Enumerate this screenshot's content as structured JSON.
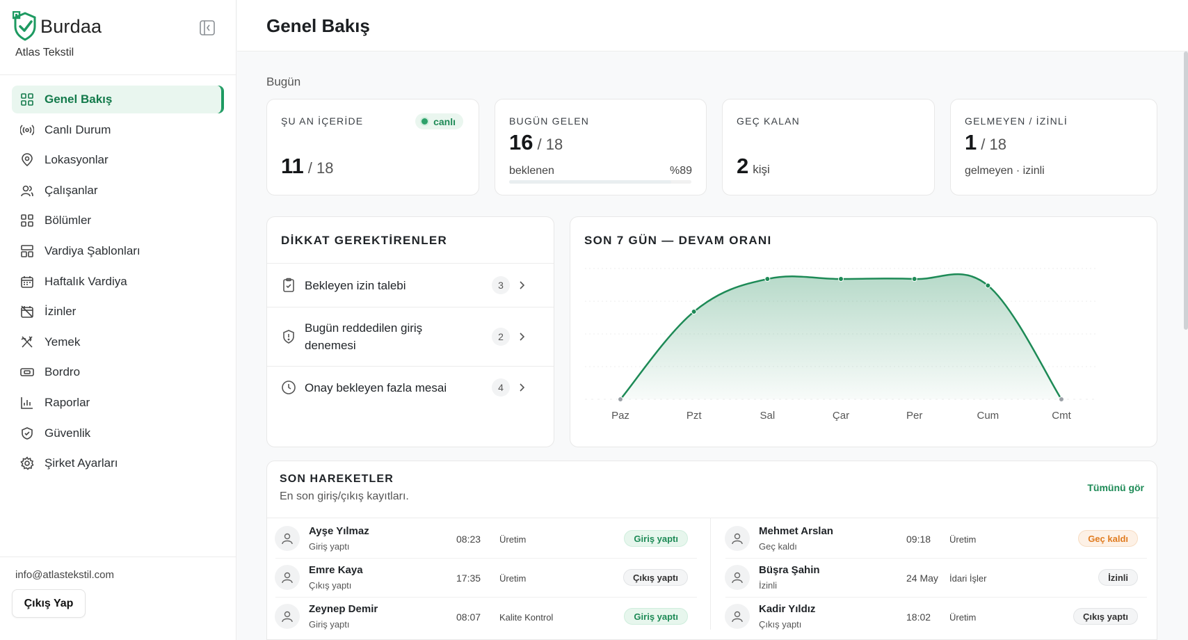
{
  "brand": {
    "name": "Burdaa",
    "company": "Atlas Tekstil"
  },
  "sidebar": {
    "items": [
      {
        "label": "Genel Bakış",
        "icon": "grid-icon",
        "active": true
      },
      {
        "label": "Canlı Durum",
        "icon": "broadcast-icon"
      },
      {
        "label": "Lokasyonlar",
        "icon": "map-pin-icon"
      },
      {
        "label": "Çalışanlar",
        "icon": "users-icon"
      },
      {
        "label": "Bölümler",
        "icon": "grid-icon"
      },
      {
        "label": "Vardiya Şablonları",
        "icon": "layout-icon"
      },
      {
        "label": "Haftalık Vardiya",
        "icon": "calendar-icon"
      },
      {
        "label": "İzinler",
        "icon": "calendar-off-icon"
      },
      {
        "label": "Yemek",
        "icon": "utensils-icon"
      },
      {
        "label": "Bordro",
        "icon": "banknote-icon"
      },
      {
        "label": "Raporlar",
        "icon": "bar-chart-icon"
      },
      {
        "label": "Güvenlik",
        "icon": "shield-check-icon"
      },
      {
        "label": "Şirket Ayarları",
        "icon": "gear-icon"
      }
    ],
    "email": "info@atlastekstil.com",
    "logout_label": "Çıkış Yap"
  },
  "header": {
    "title": "Genel Bakış"
  },
  "today": {
    "label": "Bugün",
    "cards": [
      {
        "label": "ŞU AN İÇERİDE",
        "badge": "canlı",
        "value": "11",
        "total": "/ 18"
      },
      {
        "label": "BUGÜN GELEN",
        "value": "16",
        "total": "/ 18",
        "sub_left": "beklenen",
        "sub_right": "%89",
        "progress": 0.89
      },
      {
        "label": "GEÇ KALAN",
        "value": "2",
        "unit": "kişi"
      },
      {
        "label": "GELMEYEN / İZİNLİ",
        "value": "1",
        "total": "/ 18",
        "sub": "gelmeyen · izinli"
      }
    ]
  },
  "attention": {
    "title": "DİKKAT GEREKTİRENLER",
    "items": [
      {
        "label": "Bekleyen izin talebi",
        "count": "3",
        "icon": "clipboard-check-icon"
      },
      {
        "label": "Bugün reddedilen giriş denemesi",
        "count": "2",
        "icon": "shield-alert-icon"
      },
      {
        "label": "Onay bekleyen fazla mesai",
        "count": "4",
        "icon": "clock-icon"
      }
    ]
  },
  "chart_data": {
    "type": "area",
    "title": "SON 7 GÜN — DEVAM ORANI",
    "categories": [
      "Paz",
      "Pzt",
      "Sal",
      "Çar",
      "Per",
      "Cum",
      "Cmt"
    ],
    "series": [
      {
        "values": [
          0,
          67,
          92,
          92,
          92,
          87,
          0
        ]
      }
    ],
    "ylim": [
      0,
      100
    ],
    "grid": true,
    "color": "#1d8a56"
  },
  "activity": {
    "title": "SON HAREKETLER",
    "subtitle": "En son giriş/çıkış kayıtları.",
    "see_all": "Tümünü gör",
    "left": [
      {
        "name": "Ayşe Yılmaz",
        "state": "Giriş yaptı",
        "time": "08:23",
        "dept": "Üretim",
        "status": "Giriş yaptı",
        "tone": "green"
      },
      {
        "name": "Emre Kaya",
        "state": "Çıkış yaptı",
        "time": "17:35",
        "dept": "Üretim",
        "status": "Çıkış yaptı",
        "tone": "grey"
      },
      {
        "name": "Zeynep Demir",
        "state": "Giriş yaptı",
        "time": "08:07",
        "dept": "Kalite Kontrol",
        "status": "Giriş yaptı",
        "tone": "green"
      }
    ],
    "right": [
      {
        "name": "Mehmet Arslan",
        "state": "Geç kaldı",
        "time": "09:18",
        "dept": "Üretim",
        "status": "Geç kaldı",
        "tone": "orange"
      },
      {
        "name": "Büşra Şahin",
        "state": "İzinli",
        "time": "24 May",
        "dept": "İdari İşler",
        "status": "İzinli",
        "tone": "grey"
      },
      {
        "name": "Kadir Yıldız",
        "state": "Çıkış yaptı",
        "time": "18:02",
        "dept": "Üretim",
        "status": "Çıkış yaptı",
        "tone": "grey"
      }
    ]
  }
}
